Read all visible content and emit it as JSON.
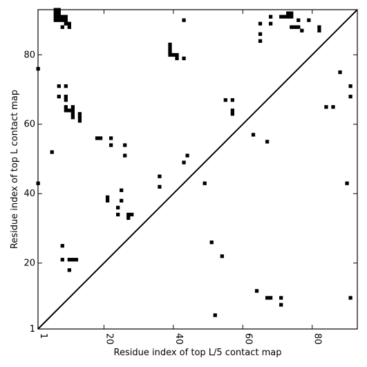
{
  "chart_data": {
    "type": "scatter",
    "xlabel": "Residue index of top L/5 contact map",
    "ylabel": "Residue index of top L contact map",
    "xlim": [
      1,
      93
    ],
    "ylim": [
      1,
      93
    ],
    "x_ticks": [
      1,
      20,
      40,
      60,
      80
    ],
    "y_ticks": [
      1,
      20,
      40,
      60,
      80
    ],
    "diagonal": true,
    "points": [
      [
        6,
        93
      ],
      [
        7,
        93
      ],
      [
        6,
        92
      ],
      [
        7,
        92
      ],
      [
        6,
        91
      ],
      [
        7,
        91
      ],
      [
        8,
        91
      ],
      [
        9,
        91
      ],
      [
        6,
        90
      ],
      [
        7,
        90
      ],
      [
        8,
        90
      ],
      [
        9,
        90
      ],
      [
        9,
        89
      ],
      [
        10,
        89
      ],
      [
        8,
        88
      ],
      [
        10,
        88
      ],
      [
        43,
        90
      ],
      [
        1,
        76
      ],
      [
        7,
        71
      ],
      [
        9,
        71
      ],
      [
        7,
        68
      ],
      [
        9,
        68
      ],
      [
        9,
        67
      ],
      [
        9,
        65
      ],
      [
        11,
        65
      ],
      [
        9,
        64
      ],
      [
        10,
        64
      ],
      [
        11,
        64
      ],
      [
        11,
        63
      ],
      [
        13,
        63
      ],
      [
        11,
        62
      ],
      [
        13,
        62
      ],
      [
        13,
        61
      ],
      [
        39,
        83
      ],
      [
        39,
        82
      ],
      [
        39,
        81
      ],
      [
        39,
        80
      ],
      [
        40,
        80
      ],
      [
        41,
        80
      ],
      [
        41,
        79
      ],
      [
        43,
        79
      ],
      [
        5,
        52
      ],
      [
        1,
        43
      ],
      [
        18,
        56
      ],
      [
        19,
        56
      ],
      [
        22,
        56
      ],
      [
        22,
        54
      ],
      [
        26,
        54
      ],
      [
        26,
        51
      ],
      [
        44,
        51
      ],
      [
        43,
        49
      ],
      [
        36,
        45
      ],
      [
        36,
        42
      ],
      [
        49,
        43
      ],
      [
        21,
        39
      ],
      [
        21,
        38
      ],
      [
        25,
        41
      ],
      [
        25,
        38
      ],
      [
        24,
        36
      ],
      [
        24,
        34
      ],
      [
        27,
        34
      ],
      [
        28,
        34
      ],
      [
        27,
        33
      ],
      [
        8,
        25
      ],
      [
        8,
        21
      ],
      [
        10,
        21
      ],
      [
        11,
        21
      ],
      [
        12,
        21
      ],
      [
        10,
        18
      ],
      [
        51,
        26
      ],
      [
        54,
        22
      ],
      [
        52,
        5
      ],
      [
        65,
        89
      ],
      [
        68,
        89
      ],
      [
        68,
        91
      ],
      [
        65,
        86
      ],
      [
        65,
        84
      ],
      [
        71,
        91
      ],
      [
        72,
        91
      ],
      [
        73,
        91
      ],
      [
        74,
        91
      ],
      [
        73,
        92
      ],
      [
        74,
        92
      ],
      [
        74,
        88
      ],
      [
        75,
        88
      ],
      [
        76,
        88
      ],
      [
        76,
        90
      ],
      [
        77,
        87
      ],
      [
        79,
        90
      ],
      [
        82,
        88
      ],
      [
        82,
        87
      ],
      [
        55,
        67
      ],
      [
        57,
        67
      ],
      [
        57,
        64
      ],
      [
        57,
        63
      ],
      [
        63,
        57
      ],
      [
        67,
        55
      ],
      [
        88,
        75
      ],
      [
        91,
        71
      ],
      [
        91,
        68
      ],
      [
        84,
        65
      ],
      [
        86,
        65
      ],
      [
        90,
        43
      ],
      [
        64,
        12
      ],
      [
        67,
        10
      ],
      [
        68,
        10
      ],
      [
        71,
        10
      ],
      [
        71,
        8
      ],
      [
        91,
        10
      ]
    ]
  }
}
